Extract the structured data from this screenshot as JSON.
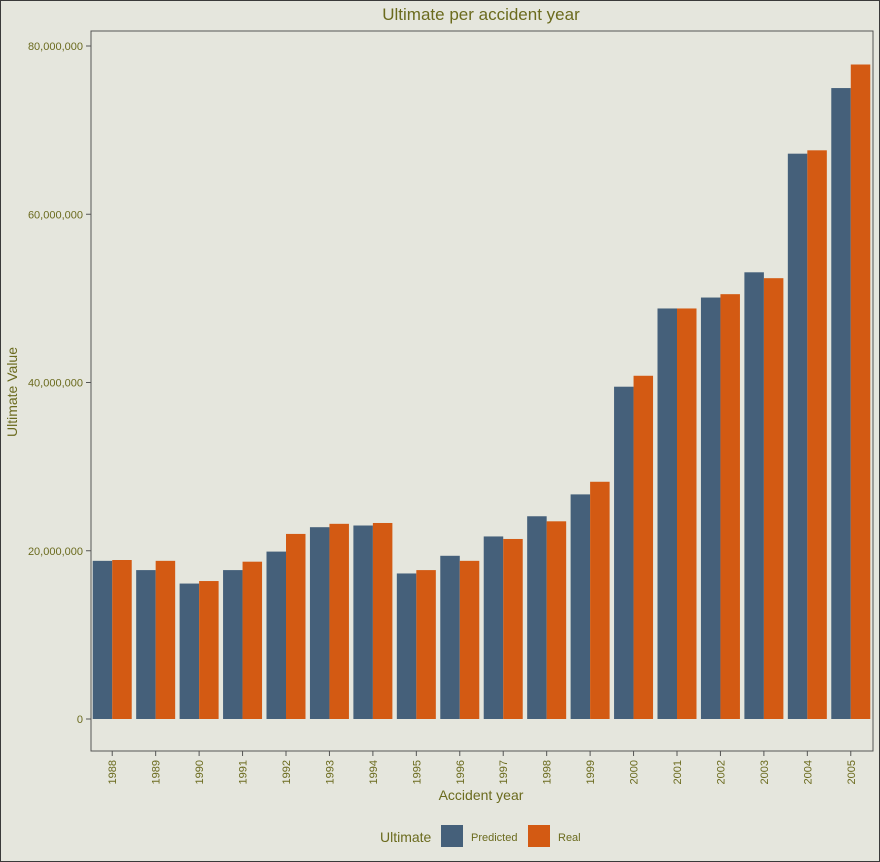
{
  "chart_data": {
    "type": "bar",
    "title": "Ultimate per accident year",
    "xlabel": "Accident year",
    "ylabel": "Ultimate Value",
    "ylim": [
      0,
      82000000
    ],
    "yticks": [
      0,
      20000000,
      40000000,
      60000000,
      80000000
    ],
    "ytick_labels": [
      "0",
      "20,000,000",
      "40,000,000",
      "60,000,000",
      "80,000,000"
    ],
    "grid": false,
    "legend_position": "bottom",
    "legend_title": "Ultimate",
    "categories": [
      "1988",
      "1989",
      "1990",
      "1991",
      "1992",
      "1993",
      "1994",
      "1995",
      "1996",
      "1997",
      "1998",
      "1999",
      "2000",
      "2001",
      "2002",
      "2003",
      "2004",
      "2005"
    ],
    "series": [
      {
        "name": "Predicted",
        "color": "#45607a",
        "values": [
          18800000,
          17700000,
          16100000,
          17700000,
          19900000,
          22800000,
          23000000,
          17300000,
          19400000,
          21700000,
          24100000,
          26700000,
          39500000,
          48800000,
          50100000,
          53100000,
          67200000,
          75000000
        ]
      },
      {
        "name": "Real",
        "color": "#d35a13",
        "values": [
          18900000,
          18800000,
          16400000,
          18700000,
          22000000,
          23200000,
          23300000,
          17700000,
          18800000,
          21400000,
          23500000,
          28200000,
          40800000,
          48800000,
          50500000,
          52400000,
          67600000,
          77800000
        ]
      }
    ]
  }
}
